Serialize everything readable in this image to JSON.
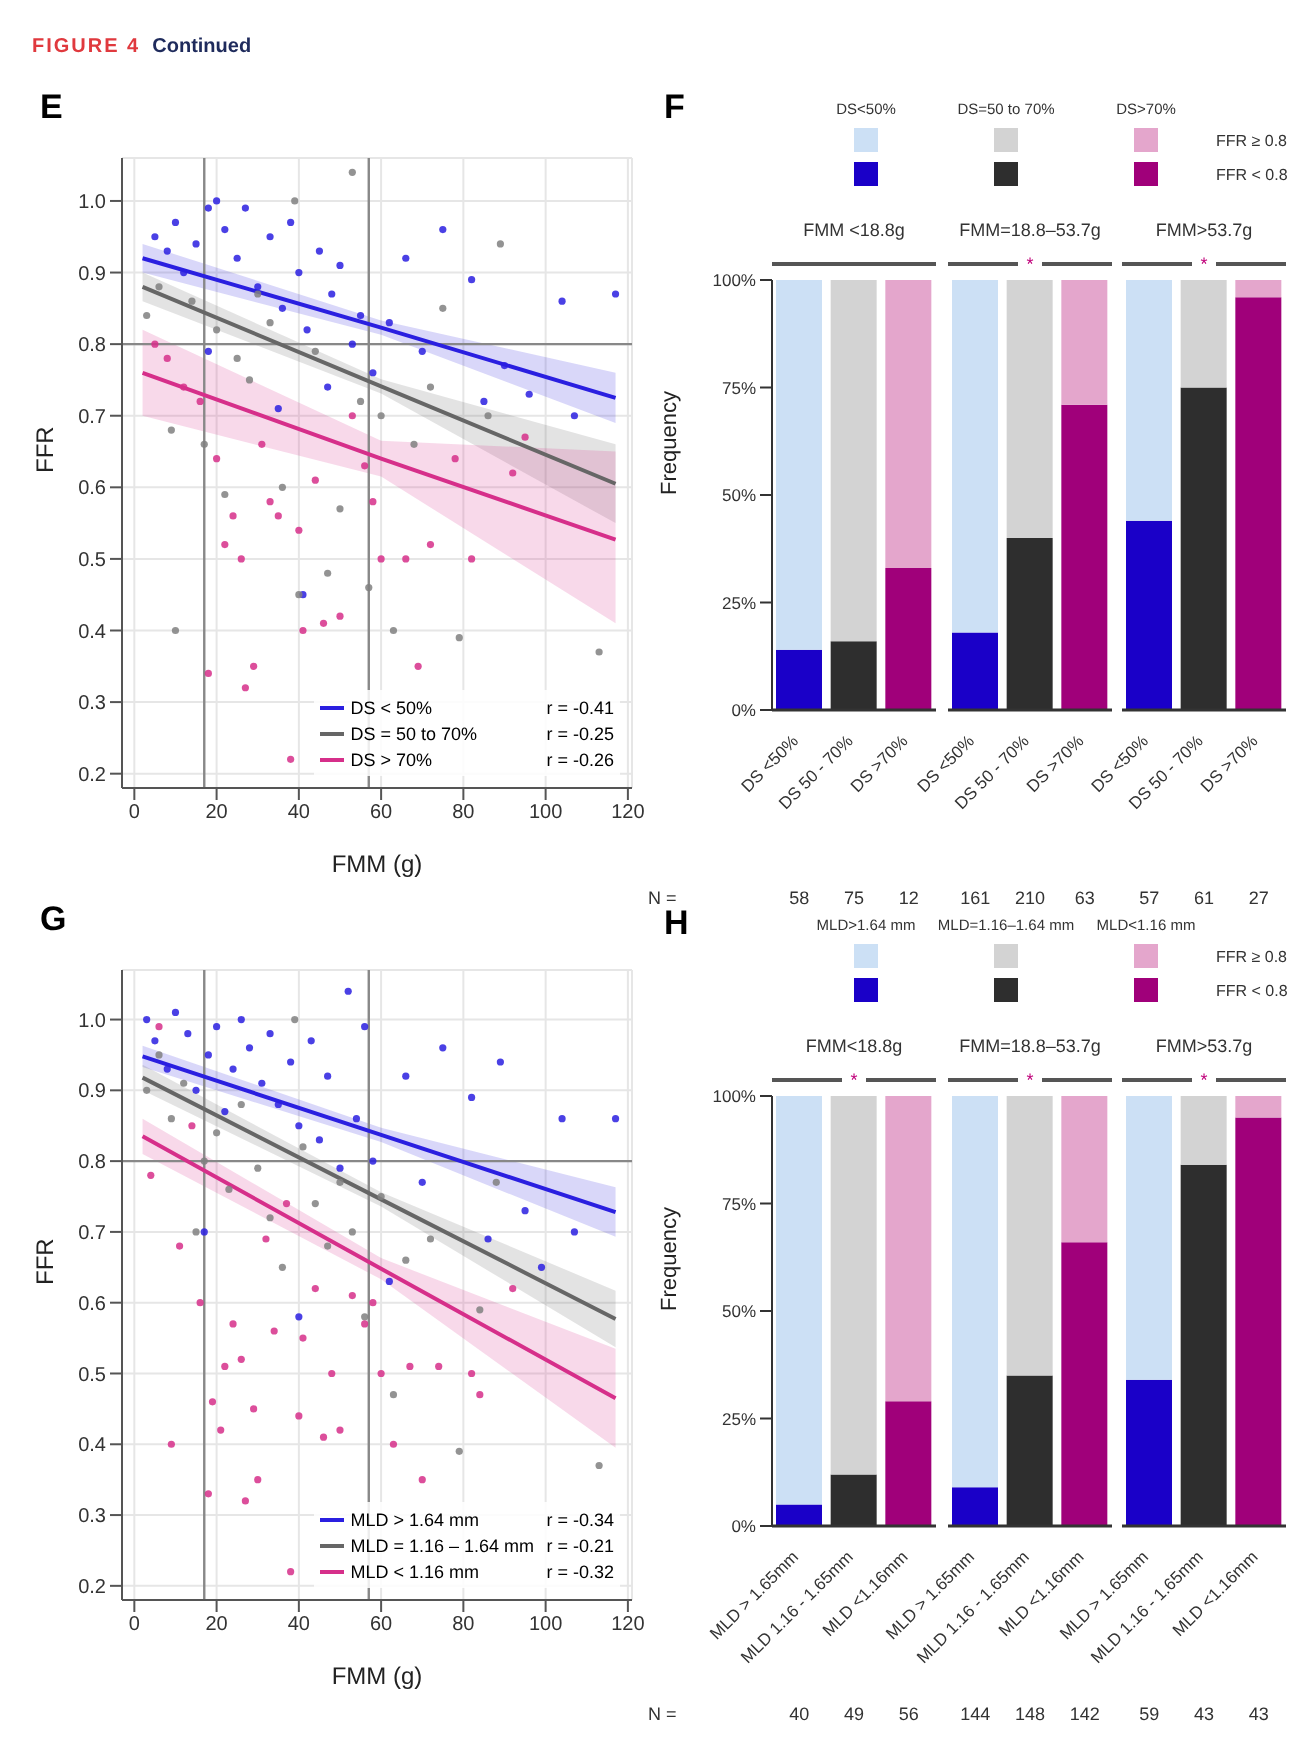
{
  "chart_data": [
    {
      "type": "scatter",
      "title": "E",
      "xlabel": "FMM (g)",
      "ylabel": "FFR",
      "xlim": [
        -3,
        121
      ],
      "xticks": [
        0,
        20,
        40,
        60,
        80,
        100,
        120
      ],
      "ylim": [
        0.18,
        1.06
      ],
      "yticks": [
        0.2,
        0.3,
        0.4,
        0.5,
        0.6,
        0.7,
        0.8,
        0.9,
        {
          "value": 1,
          "label": "1.0"
        }
      ],
      "grid": true,
      "legend": "bottom right",
      "ref_lines": [
        {
          "axis": "x",
          "value": 17,
          "color": "#888888"
        },
        {
          "axis": "x",
          "value": 57,
          "color": "#888888"
        },
        {
          "axis": "y",
          "value": 0.8,
          "color": "#888888"
        }
      ],
      "annotations": [
        "r = -0.41",
        "r = -0.25",
        "r = -0.26",
        "FIGURE 4",
        "Continued"
      ],
      "series": [
        {
          "type": "scatter",
          "marker": "circle",
          "color": "#2a1fe0",
          "x": [
            5,
            8,
            10,
            12,
            15,
            18,
            20,
            22,
            25,
            27,
            30,
            33,
            36,
            38,
            40,
            42,
            45,
            48,
            50,
            53,
            55,
            58,
            62,
            66,
            70,
            75,
            82,
            85,
            90,
            96,
            104,
            107,
            117,
            41,
            18,
            35,
            47
          ],
          "values": [
            0.95,
            0.93,
            0.97,
            0.9,
            0.94,
            0.99,
            1.0,
            0.96,
            0.92,
            0.99,
            0.88,
            0.95,
            0.85,
            0.97,
            0.9,
            0.82,
            0.93,
            0.87,
            0.91,
            0.8,
            0.84,
            0.76,
            0.83,
            0.92,
            0.79,
            0.96,
            0.89,
            0.72,
            0.77,
            0.73,
            0.86,
            0.7,
            0.87,
            0.45,
            0.79,
            0.71,
            0.74
          ]
        },
        {
          "type": "scatter",
          "marker": "circle",
          "color": "#808080",
          "x": [
            3,
            6,
            9,
            10,
            14,
            17,
            20,
            22,
            25,
            28,
            30,
            33,
            36,
            39,
            40,
            44,
            47,
            50,
            53,
            55,
            57,
            60,
            63,
            68,
            72,
            75,
            79,
            86,
            89,
            113
          ],
          "values": [
            0.84,
            0.88,
            0.68,
            0.4,
            0.86,
            0.66,
            0.82,
            0.59,
            0.78,
            0.75,
            0.87,
            0.83,
            0.6,
            1.0,
            0.45,
            0.79,
            0.48,
            0.57,
            1.04,
            0.72,
            0.46,
            0.7,
            0.4,
            0.66,
            0.74,
            0.85,
            0.39,
            0.7,
            0.94,
            0.37
          ]
        },
        {
          "type": "scatter",
          "marker": "circle",
          "color": "#d62f8a",
          "x": [
            5,
            8,
            12,
            16,
            18,
            20,
            22,
            24,
            26,
            27,
            29,
            31,
            33,
            35,
            38,
            40,
            41,
            44,
            46,
            50,
            53,
            56,
            58,
            60,
            66,
            69,
            72,
            78,
            82,
            92,
            95
          ],
          "values": [
            0.8,
            0.78,
            0.74,
            0.72,
            0.34,
            0.64,
            0.52,
            0.56,
            0.5,
            0.32,
            0.35,
            0.66,
            0.58,
            0.56,
            0.22,
            0.54,
            0.4,
            0.61,
            0.41,
            0.42,
            0.7,
            0.63,
            0.58,
            0.5,
            0.5,
            0.35,
            0.52,
            0.64,
            0.5,
            0.62,
            0.67
          ]
        },
        {
          "type": "line",
          "marker": "none",
          "name": "DS < 50%",
          "color": "#2a1fe0",
          "x": [
            2,
            60,
            117
          ],
          "values": [
            0.92,
            0.823,
            0.725
          ],
          "lower": [
            0.9,
            0.813,
            0.69
          ],
          "upper": [
            0.94,
            0.833,
            0.76
          ]
        },
        {
          "type": "line",
          "marker": "none",
          "name": "DS = 50 to 70%",
          "color": "#666666",
          "x": [
            2,
            60,
            117
          ],
          "values": [
            0.88,
            0.741,
            0.605
          ],
          "lower": [
            0.86,
            0.731,
            0.55
          ],
          "upper": [
            0.9,
            0.751,
            0.66
          ]
        },
        {
          "type": "line",
          "marker": "none",
          "name": "DS > 70%",
          "color": "#d62f8a",
          "x": [
            2,
            60,
            117
          ],
          "values": [
            0.76,
            0.64,
            0.527
          ],
          "lower": [
            0.7,
            0.615,
            0.41
          ],
          "upper": [
            0.82,
            0.665,
            0.65
          ]
        }
      ]
    },
    {
      "type": "bar",
      "title": "F",
      "subtitle": "FMM <18.8g",
      "ylabel": "Frequency",
      "stacked": true,
      "legend": "top right",
      "categories": [
        "DS <50%",
        "DS 50 - 70%",
        "DS >70%"
      ],
      "ylim": [
        0,
        100
      ],
      "yticks": [
        {
          "value": 0,
          "label": "0%"
        },
        {
          "value": 25,
          "label": "25%"
        },
        {
          "value": 50,
          "label": "50%"
        },
        {
          "value": 75,
          "label": "75%"
        },
        {
          "value": 100,
          "label": "100%"
        }
      ],
      "annotations": [
        "DS<50%",
        "DS=50 to 70%",
        "DS>70%",
        "N =",
        "58",
        "75",
        "12"
      ],
      "series": [
        {
          "name": "FFR < 0.8",
          "colors": [
            "#1a00c8",
            "#2e2e2e",
            "#a0007a"
          ],
          "values": [
            14,
            16,
            33
          ]
        },
        {
          "name": "FFR ≥ 0.8",
          "colors": [
            "#cce0f5",
            "#d3d3d3",
            "#e4a6cc"
          ],
          "values": [
            86,
            84,
            67
          ]
        }
      ]
    },
    {
      "type": "bar",
      "subtitle": "FMM=18.8–53.7g",
      "stacked": true,
      "tick_labels": "x",
      "categories": [
        "DS <50%",
        "DS 50 - 70%",
        "DS >70%"
      ],
      "ylim": [
        0,
        100
      ],
      "annotations": [
        "*",
        "161",
        "210",
        "63"
      ],
      "series": [
        {
          "colors": [
            "#1a00c8",
            "#2e2e2e",
            "#a0007a"
          ],
          "values": [
            18,
            40,
            71
          ]
        },
        {
          "colors": [
            "#cce0f5",
            "#d3d3d3",
            "#e4a6cc"
          ],
          "values": [
            82,
            60,
            29
          ]
        }
      ]
    },
    {
      "type": "bar",
      "subtitle": "FMM>53.7g",
      "stacked": true,
      "tick_labels": "x",
      "categories": [
        "DS <50%",
        "DS 50 - 70%",
        "DS >70%"
      ],
      "ylim": [
        0,
        100
      ],
      "annotations": [
        "*",
        "57",
        "61",
        "27"
      ],
      "series": [
        {
          "colors": [
            "#1a00c8",
            "#2e2e2e",
            "#a0007a"
          ],
          "values": [
            44,
            75,
            96
          ]
        },
        {
          "colors": [
            "#cce0f5",
            "#d3d3d3",
            "#e4a6cc"
          ],
          "values": [
            56,
            25,
            4
          ]
        }
      ]
    },
    {
      "type": "scatter",
      "title": "G",
      "xlabel": "FMM (g)",
      "ylabel": "FFR",
      "xlim": [
        -3,
        121
      ],
      "xticks": [
        0,
        20,
        40,
        60,
        80,
        100,
        120
      ],
      "ylim": [
        0.18,
        1.07
      ],
      "yticks": [
        0.2,
        0.3,
        0.4,
        0.5,
        0.6,
        0.7,
        0.8,
        0.9,
        {
          "value": 1,
          "label": "1.0"
        }
      ],
      "grid": true,
      "legend": "bottom right",
      "ref_lines": [
        {
          "axis": "x",
          "value": 17,
          "color": "#888888"
        },
        {
          "axis": "x",
          "value": 57,
          "color": "#888888"
        },
        {
          "axis": "y",
          "value": 0.8,
          "color": "#888888"
        }
      ],
      "annotations": [
        "r = -0.34",
        "r = -0.21",
        "r = -0.32"
      ],
      "series": [
        {
          "type": "scatter",
          "marker": "circle",
          "color": "#2a1fe0",
          "x": [
            3,
            5,
            8,
            10,
            13,
            15,
            18,
            20,
            22,
            24,
            26,
            28,
            31,
            33,
            35,
            38,
            40,
            43,
            45,
            47,
            50,
            52,
            54,
            56,
            58,
            62,
            66,
            70,
            75,
            82,
            86,
            89,
            95,
            99,
            104,
            107,
            117,
            40,
            17
          ],
          "values": [
            1.0,
            0.97,
            0.93,
            1.01,
            0.98,
            0.9,
            0.95,
            0.99,
            0.87,
            0.93,
            1.0,
            0.96,
            0.91,
            0.98,
            0.88,
            0.94,
            0.85,
            0.97,
            0.83,
            0.92,
            0.79,
            1.04,
            0.86,
            0.99,
            0.8,
            0.63,
            0.92,
            0.77,
            0.96,
            0.89,
            0.69,
            0.94,
            0.73,
            0.65,
            0.86,
            0.7,
            0.86,
            0.58,
            0.7
          ]
        },
        {
          "type": "scatter",
          "marker": "circle",
          "color": "#808080",
          "x": [
            3,
            6,
            9,
            12,
            15,
            17,
            20,
            23,
            26,
            30,
            33,
            36,
            39,
            41,
            44,
            47,
            50,
            53,
            56,
            60,
            63,
            66,
            72,
            79,
            84,
            88,
            113
          ],
          "values": [
            0.9,
            0.95,
            0.86,
            0.91,
            0.7,
            0.8,
            0.84,
            0.76,
            0.88,
            0.79,
            0.72,
            0.65,
            1.0,
            0.82,
            0.74,
            0.68,
            0.77,
            0.7,
            0.58,
            0.75,
            0.47,
            0.66,
            0.69,
            0.39,
            0.59,
            0.77,
            0.37
          ]
        },
        {
          "type": "scatter",
          "marker": "circle",
          "color": "#d62f8a",
          "x": [
            4,
            6,
            9,
            11,
            14,
            16,
            18,
            19,
            21,
            22,
            24,
            26,
            27,
            29,
            30,
            32,
            34,
            37,
            38,
            40,
            41,
            44,
            46,
            48,
            50,
            53,
            56,
            58,
            60,
            63,
            67,
            70,
            74,
            82,
            84,
            92
          ],
          "values": [
            0.78,
            0.99,
            0.4,
            0.68,
            0.85,
            0.6,
            0.33,
            0.46,
            0.42,
            0.51,
            0.57,
            0.52,
            0.32,
            0.45,
            0.35,
            0.69,
            0.56,
            0.74,
            0.22,
            0.44,
            0.55,
            0.62,
            0.41,
            0.5,
            0.42,
            0.61,
            0.57,
            0.6,
            0.5,
            0.4,
            0.51,
            0.35,
            0.51,
            0.5,
            0.47,
            0.62
          ]
        },
        {
          "type": "line",
          "marker": "none",
          "name": "MLD > 1.64 mm",
          "color": "#2a1fe0",
          "x": [
            2,
            60,
            117
          ],
          "values": [
            0.948,
            0.837,
            0.728
          ],
          "lower": [
            0.933,
            0.827,
            0.693
          ],
          "upper": [
            0.963,
            0.847,
            0.763
          ]
        },
        {
          "type": "line",
          "marker": "none",
          "name": "MLD = 1.16 – 1.64 mm",
          "color": "#666666",
          "x": [
            2,
            60,
            117
          ],
          "values": [
            0.918,
            0.746,
            0.577
          ],
          "lower": [
            0.9,
            0.736,
            0.537
          ],
          "upper": [
            0.936,
            0.756,
            0.617
          ]
        },
        {
          "type": "line",
          "marker": "none",
          "name": "MLD < 1.16 mm",
          "color": "#d62f8a",
          "x": [
            2,
            60,
            117
          ],
          "values": [
            0.835,
            0.648,
            0.465
          ],
          "lower": [
            0.81,
            0.633,
            0.395
          ],
          "upper": [
            0.86,
            0.663,
            0.535
          ]
        }
      ]
    },
    {
      "type": "bar",
      "title": "H",
      "subtitle": "FMM<18.8g",
      "ylabel": "Frequency",
      "stacked": true,
      "legend": "top right",
      "categories": [
        "MLD > 1.65mm",
        "MLD 1.16 - 1.65mm",
        "MLD <1.16mm"
      ],
      "ylim": [
        0,
        100
      ],
      "yticks": [
        {
          "value": 0,
          "label": "0%"
        },
        {
          "value": 25,
          "label": "25%"
        },
        {
          "value": 50,
          "label": "50%"
        },
        {
          "value": 75,
          "label": "75%"
        },
        {
          "value": 100,
          "label": "100%"
        }
      ],
      "annotations": [
        "MLD>1.64 mm",
        "MLD=1.16–1.64 mm",
        "MLD<1.16 mm",
        "N =",
        "*",
        "40",
        "49",
        "56"
      ],
      "series": [
        {
          "name": "FFR < 0.8",
          "colors": [
            "#1a00c8",
            "#2e2e2e",
            "#a0007a"
          ],
          "values": [
            5,
            12,
            29
          ]
        },
        {
          "name": "FFR ≥ 0.8",
          "colors": [
            "#cce0f5",
            "#d3d3d3",
            "#e4a6cc"
          ],
          "values": [
            95,
            88,
            71
          ]
        }
      ]
    },
    {
      "type": "bar",
      "subtitle": "FMM=18.8–53.7g",
      "stacked": true,
      "tick_labels": "x",
      "categories": [
        "MLD > 1.65mm",
        "MLD 1.16 - 1.65mm",
        "MLD <1.16mm"
      ],
      "ylim": [
        0,
        100
      ],
      "annotations": [
        "*",
        "144",
        "148",
        "142"
      ],
      "series": [
        {
          "colors": [
            "#1a00c8",
            "#2e2e2e",
            "#a0007a"
          ],
          "values": [
            9,
            35,
            66
          ]
        },
        {
          "colors": [
            "#cce0f5",
            "#d3d3d3",
            "#e4a6cc"
          ],
          "values": [
            91,
            65,
            34
          ]
        }
      ]
    },
    {
      "type": "bar",
      "subtitle": "FMM>53.7g",
      "stacked": true,
      "tick_labels": "x",
      "categories": [
        "MLD > 1.65mm",
        "MLD 1.16 - 1.65mm",
        "MLD <1.16mm"
      ],
      "ylim": [
        0,
        100
      ],
      "annotations": [
        "*",
        "59",
        "43",
        "43"
      ],
      "series": [
        {
          "colors": [
            "#1a00c8",
            "#2e2e2e",
            "#a0007a"
          ],
          "values": [
            34,
            84,
            95
          ]
        },
        {
          "colors": [
            "#cce0f5",
            "#d3d3d3",
            "#e4a6cc"
          ],
          "values": [
            66,
            16,
            5
          ]
        }
      ]
    }
  ]
}
